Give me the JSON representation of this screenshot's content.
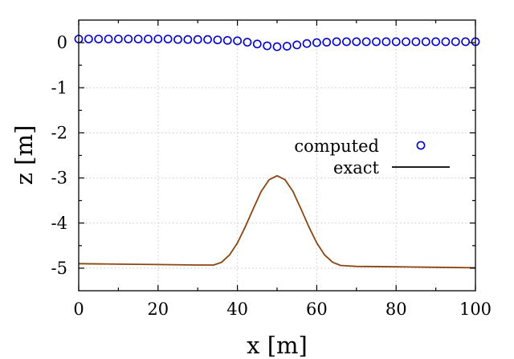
{
  "chart_data": {
    "type": "line",
    "xlabel": "x [m]",
    "ylabel": "z [m]",
    "xlim": [
      0,
      100
    ],
    "ylim": [
      -5.5,
      0.5
    ],
    "x_ticks": [
      0,
      20,
      40,
      60,
      80,
      100
    ],
    "y_ticks": [
      0,
      -1,
      -2,
      -3,
      -4,
      -5
    ],
    "x_tick_labels": [
      "0",
      "20",
      "40",
      "60",
      "80",
      "100"
    ],
    "y_tick_labels": [
      "0",
      "-1",
      "-2",
      "-3",
      "-4",
      "-5"
    ],
    "grid": true,
    "legend_position": "right",
    "series": [
      {
        "name": "computed",
        "style": "markers",
        "marker": "open-circle",
        "color": "#0000cc",
        "x": [
          0,
          2.5,
          5,
          7.5,
          10,
          12.5,
          15,
          17.5,
          20,
          22.5,
          25,
          27.5,
          30,
          32.5,
          35,
          37.5,
          40,
          42.5,
          45,
          47.5,
          50,
          52.5,
          55,
          57.5,
          60,
          62.5,
          65,
          67.5,
          70,
          72.5,
          75,
          77.5,
          80,
          82.5,
          85,
          87.5,
          90,
          92.5,
          95,
          97.5,
          100
        ],
        "y": [
          0.08,
          0.08,
          0.08,
          0.08,
          0.08,
          0.08,
          0.08,
          0.08,
          0.08,
          0.08,
          0.07,
          0.07,
          0.07,
          0.07,
          0.06,
          0.05,
          0.04,
          0.01,
          -0.03,
          -0.07,
          -0.09,
          -0.08,
          -0.05,
          -0.02,
          0.0,
          0.01,
          0.02,
          0.02,
          0.02,
          0.02,
          0.02,
          0.02,
          0.02,
          0.02,
          0.02,
          0.02,
          0.02,
          0.02,
          0.02,
          0.02,
          0.02
        ]
      },
      {
        "name": "exact",
        "style": "line",
        "color": "#8b4513",
        "x": [
          0,
          10,
          20,
          30,
          32,
          34,
          36,
          38,
          40,
          42,
          44,
          46,
          48,
          50,
          52,
          54,
          56,
          58,
          60,
          62,
          64,
          66,
          68,
          70,
          80,
          90,
          100
        ],
        "y": [
          -4.9,
          -4.91,
          -4.92,
          -4.93,
          -4.93,
          -4.93,
          -4.87,
          -4.71,
          -4.44,
          -4.08,
          -3.68,
          -3.3,
          -3.04,
          -2.95,
          -3.04,
          -3.3,
          -3.68,
          -4.08,
          -4.44,
          -4.71,
          -4.87,
          -4.94,
          -4.95,
          -4.96,
          -4.97,
          -4.98,
          -4.99
        ]
      }
    ],
    "legend_marker_color": "#0000cc",
    "legend_line_color": "#000000"
  }
}
